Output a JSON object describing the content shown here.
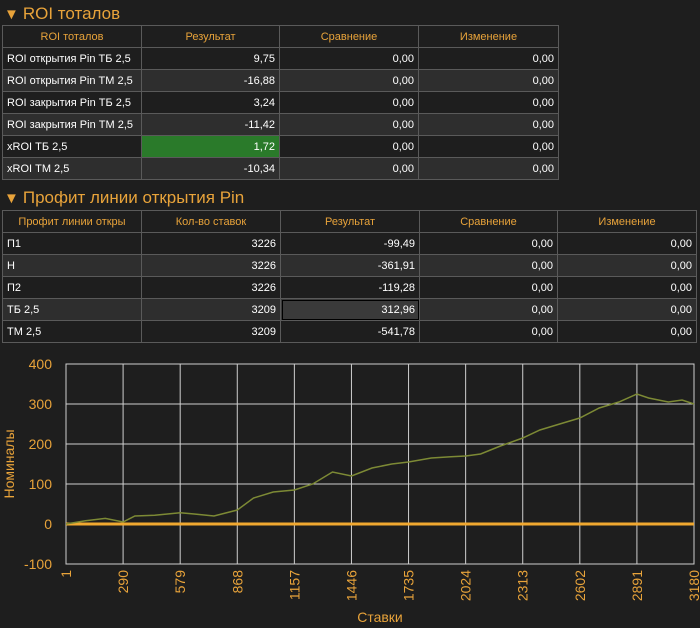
{
  "roi_section": {
    "title": "ROI тоталов",
    "headers": [
      "ROI тоталов",
      "Результат",
      "Сравнение",
      "Изменение"
    ],
    "rows": [
      {
        "label": "ROI открытия Pin ТБ 2,5",
        "result": "9,75",
        "compare": "0,00",
        "change": "0,00"
      },
      {
        "label": "ROI открытия Pin ТМ 2,5",
        "result": "-16,88",
        "compare": "0,00",
        "change": "0,00"
      },
      {
        "label": "ROI закрытия Pin ТБ 2,5",
        "result": "3,24",
        "compare": "0,00",
        "change": "0,00"
      },
      {
        "label": "ROI закрытия Pin ТМ 2,5",
        "result": "-11,42",
        "compare": "0,00",
        "change": "0,00"
      },
      {
        "label": "xROI ТБ 2,5",
        "result": "1,72",
        "compare": "0,00",
        "change": "0,00"
      },
      {
        "label": "xROI ТМ 2,5",
        "result": "-10,34",
        "compare": "0,00",
        "change": "0,00"
      }
    ]
  },
  "profit_section": {
    "title": "Профит линии открытия Pin",
    "headers": [
      "Профит линии откры",
      "Кол-во ставок",
      "Результат",
      "Сравнение",
      "Изменение"
    ],
    "rows": [
      {
        "label": "П1",
        "count": "3226",
        "result": "-99,49",
        "compare": "0,00",
        "change": "0,00"
      },
      {
        "label": "Н",
        "count": "3226",
        "result": "-361,91",
        "compare": "0,00",
        "change": "0,00"
      },
      {
        "label": "П2",
        "count": "3226",
        "result": "-119,28",
        "compare": "0,00",
        "change": "0,00"
      },
      {
        "label": "ТБ 2,5",
        "count": "3209",
        "result": "312,96",
        "compare": "0,00",
        "change": "0,00"
      },
      {
        "label": "ТМ 2,5",
        "count": "3209",
        "result": "-541,78",
        "compare": "0,00",
        "change": "0,00"
      }
    ]
  },
  "colors": {
    "accent": "#e8a33a",
    "line": "#7d8a35",
    "zero_line": "#f0a830",
    "highlight_green": "#2a7a2a"
  },
  "chart_data": {
    "type": "line",
    "xlabel": "Ставки",
    "ylabel": "Номиналы",
    "xlim": [
      1,
      3180
    ],
    "ylim": [
      -100,
      400
    ],
    "x_ticks": [
      1,
      290,
      579,
      868,
      1157,
      1446,
      1735,
      2024,
      2313,
      2602,
      2891,
      3180
    ],
    "y_ticks": [
      -100,
      0,
      100,
      200,
      300,
      400
    ],
    "grid": true,
    "series": [
      {
        "x": [
          1,
          100,
          200,
          290,
          350,
          450,
          579,
          650,
          750,
          868,
          950,
          1050,
          1157,
          1250,
          1350,
          1446,
          1550,
          1650,
          1735,
          1850,
          1950,
          2024,
          2100,
          2200,
          2313,
          2400,
          2500,
          2602,
          2700,
          2800,
          2891,
          2950,
          3050,
          3120,
          3180
        ],
        "y": [
          0,
          8,
          14,
          5,
          20,
          22,
          28,
          25,
          20,
          35,
          65,
          80,
          85,
          100,
          130,
          120,
          140,
          150,
          155,
          165,
          168,
          170,
          175,
          195,
          215,
          235,
          250,
          265,
          290,
          305,
          325,
          315,
          305,
          310,
          300
        ]
      }
    ],
    "reference_line": 0
  }
}
